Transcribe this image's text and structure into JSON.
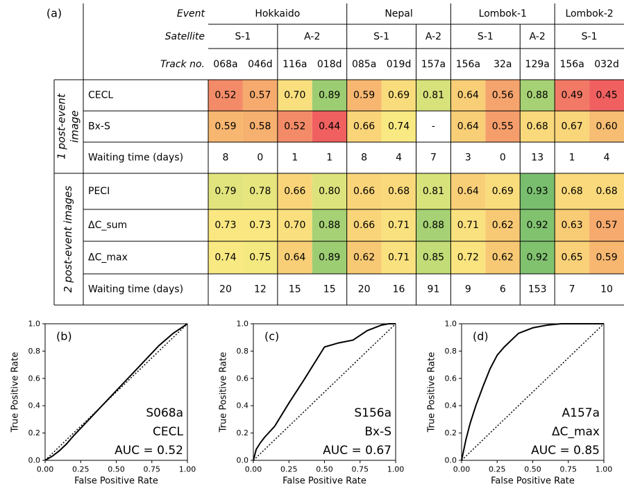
{
  "chart_data": [
    {
      "type": "heatmap",
      "panel_label": "(a)",
      "header_labels": {
        "event": "Event",
        "satellite": "Satellite",
        "track": "Track no."
      },
      "events": [
        {
          "name": "Hokkaido",
          "span": 4
        },
        {
          "name": "Nepal",
          "span": 3
        },
        {
          "name": "Lombok-1",
          "span": 3
        },
        {
          "name": "Lombok-2",
          "span": 2
        }
      ],
      "satellites": [
        {
          "name": "S-1",
          "span": 2
        },
        {
          "name": "A-2",
          "span": 2
        },
        {
          "name": "S-1",
          "span": 2
        },
        {
          "name": "A-2",
          "span": 1
        },
        {
          "name": "S-1",
          "span": 2
        },
        {
          "name": "A-2",
          "span": 1
        },
        {
          "name": "S-1",
          "span": 2
        }
      ],
      "tracks": [
        "068a",
        "046d",
        "116a",
        "018d",
        "085a",
        "019d",
        "157a",
        "156a",
        "32a",
        "129a",
        "156a",
        "032d"
      ],
      "groups": [
        {
          "label": "1 post-event image",
          "rows": [
            {
              "name": "CECL",
              "values": [
                "0.52",
                "0.57",
                "0.70",
                "0.89",
                "0.59",
                "0.69",
                "0.81",
                "0.64",
                "0.56",
                "0.88",
                "0.49",
                "0.45"
              ]
            },
            {
              "name": "Bx-S",
              "values": [
                "0.59",
                "0.58",
                "0.52",
                "0.44",
                "0.66",
                "0.74",
                "-",
                "0.64",
                "0.55",
                "0.68",
                "0.67",
                "0.60"
              ]
            },
            {
              "name": "Waiting time (days)",
              "plain": true,
              "values": [
                "8",
                "0",
                "1",
                "1",
                "8",
                "4",
                "7",
                "3",
                "0",
                "13",
                "1",
                "4"
              ]
            }
          ]
        },
        {
          "label": "2 post-event images",
          "rows": [
            {
              "name": "PECI",
              "values": [
                "0.79",
                "0.78",
                "0.66",
                "0.80",
                "0.66",
                "0.68",
                "0.81",
                "0.64",
                "0.69",
                "0.93",
                "0.68",
                "0.68"
              ]
            },
            {
              "name": "ΔC_sum",
              "values": [
                "0.73",
                "0.73",
                "0.70",
                "0.88",
                "0.66",
                "0.71",
                "0.88",
                "0.71",
                "0.62",
                "0.92",
                "0.63",
                "0.57"
              ]
            },
            {
              "name": "ΔC_max",
              "values": [
                "0.74",
                "0.75",
                "0.64",
                "0.89",
                "0.62",
                "0.71",
                "0.85",
                "0.72",
                "0.62",
                "0.92",
                "0.65",
                "0.59"
              ]
            },
            {
              "name": "Waiting time (days)",
              "plain": true,
              "values": [
                "20",
                "12",
                "15",
                "15",
                "20",
                "16",
                "91",
                "9",
                "6",
                "153",
                "7",
                "10"
              ]
            }
          ]
        }
      ]
    },
    {
      "type": "line",
      "panel_label": "(b)",
      "xlabel": "False Positive Rate",
      "ylabel": "True Positive Rate",
      "xlim": [
        0,
        1
      ],
      "ylim": [
        0,
        1
      ],
      "xticks": [
        "0.00",
        "0.25",
        "0.50",
        "0.75",
        "1.00"
      ],
      "yticks": [
        "0.0",
        "0.2",
        "0.4",
        "0.6",
        "0.8",
        "1.0"
      ],
      "annotation": [
        "S068a",
        "CECL",
        "AUC = 0.52"
      ],
      "x": [
        0,
        0.05,
        0.1,
        0.15,
        0.2,
        0.3,
        0.4,
        0.5,
        0.6,
        0.7,
        0.8,
        0.9,
        1.0
      ],
      "y": [
        0,
        0.03,
        0.07,
        0.12,
        0.18,
        0.29,
        0.4,
        0.51,
        0.62,
        0.73,
        0.84,
        0.93,
        1.0
      ]
    },
    {
      "type": "line",
      "panel_label": "(c)",
      "xlabel": "False Positive Rate",
      "ylabel": "True Positive Rate",
      "xlim": [
        0,
        1
      ],
      "ylim": [
        0,
        1
      ],
      "xticks": [
        "0.00",
        "0.25",
        "0.50",
        "0.75",
        "1.00"
      ],
      "yticks": [
        "0.0",
        "0.2",
        "0.4",
        "0.6",
        "0.8",
        "1.0"
      ],
      "annotation": [
        "S156a",
        "Bx-S",
        "AUC = 0.67"
      ],
      "x": [
        0,
        0.02,
        0.05,
        0.08,
        0.15,
        0.25,
        0.35,
        0.5,
        0.6,
        0.7,
        0.8,
        0.9,
        0.95,
        1.0
      ],
      "y": [
        0,
        0.08,
        0.13,
        0.17,
        0.25,
        0.42,
        0.58,
        0.83,
        0.86,
        0.88,
        0.95,
        0.99,
        1.0,
        1.0
      ]
    },
    {
      "type": "line",
      "panel_label": "(d)",
      "xlabel": "False Positive Rate",
      "ylabel": "True Positive Rate",
      "xlim": [
        0,
        1
      ],
      "ylim": [
        0,
        1
      ],
      "xticks": [
        "0.00",
        "0.25",
        "0.50",
        "0.75",
        "1.00"
      ],
      "yticks": [
        "0.0",
        "0.2",
        "0.4",
        "0.6",
        "0.8",
        "1.0"
      ],
      "annotation": [
        "A157a",
        "ΔC_max",
        "AUC = 0.85"
      ],
      "x": [
        0,
        0.03,
        0.06,
        0.1,
        0.15,
        0.2,
        0.25,
        0.3,
        0.4,
        0.5,
        0.6,
        0.7,
        0.8,
        1.0
      ],
      "y": [
        0,
        0.15,
        0.27,
        0.4,
        0.54,
        0.67,
        0.77,
        0.83,
        0.93,
        0.97,
        0.99,
        1.0,
        1.0,
        1.0
      ]
    }
  ]
}
